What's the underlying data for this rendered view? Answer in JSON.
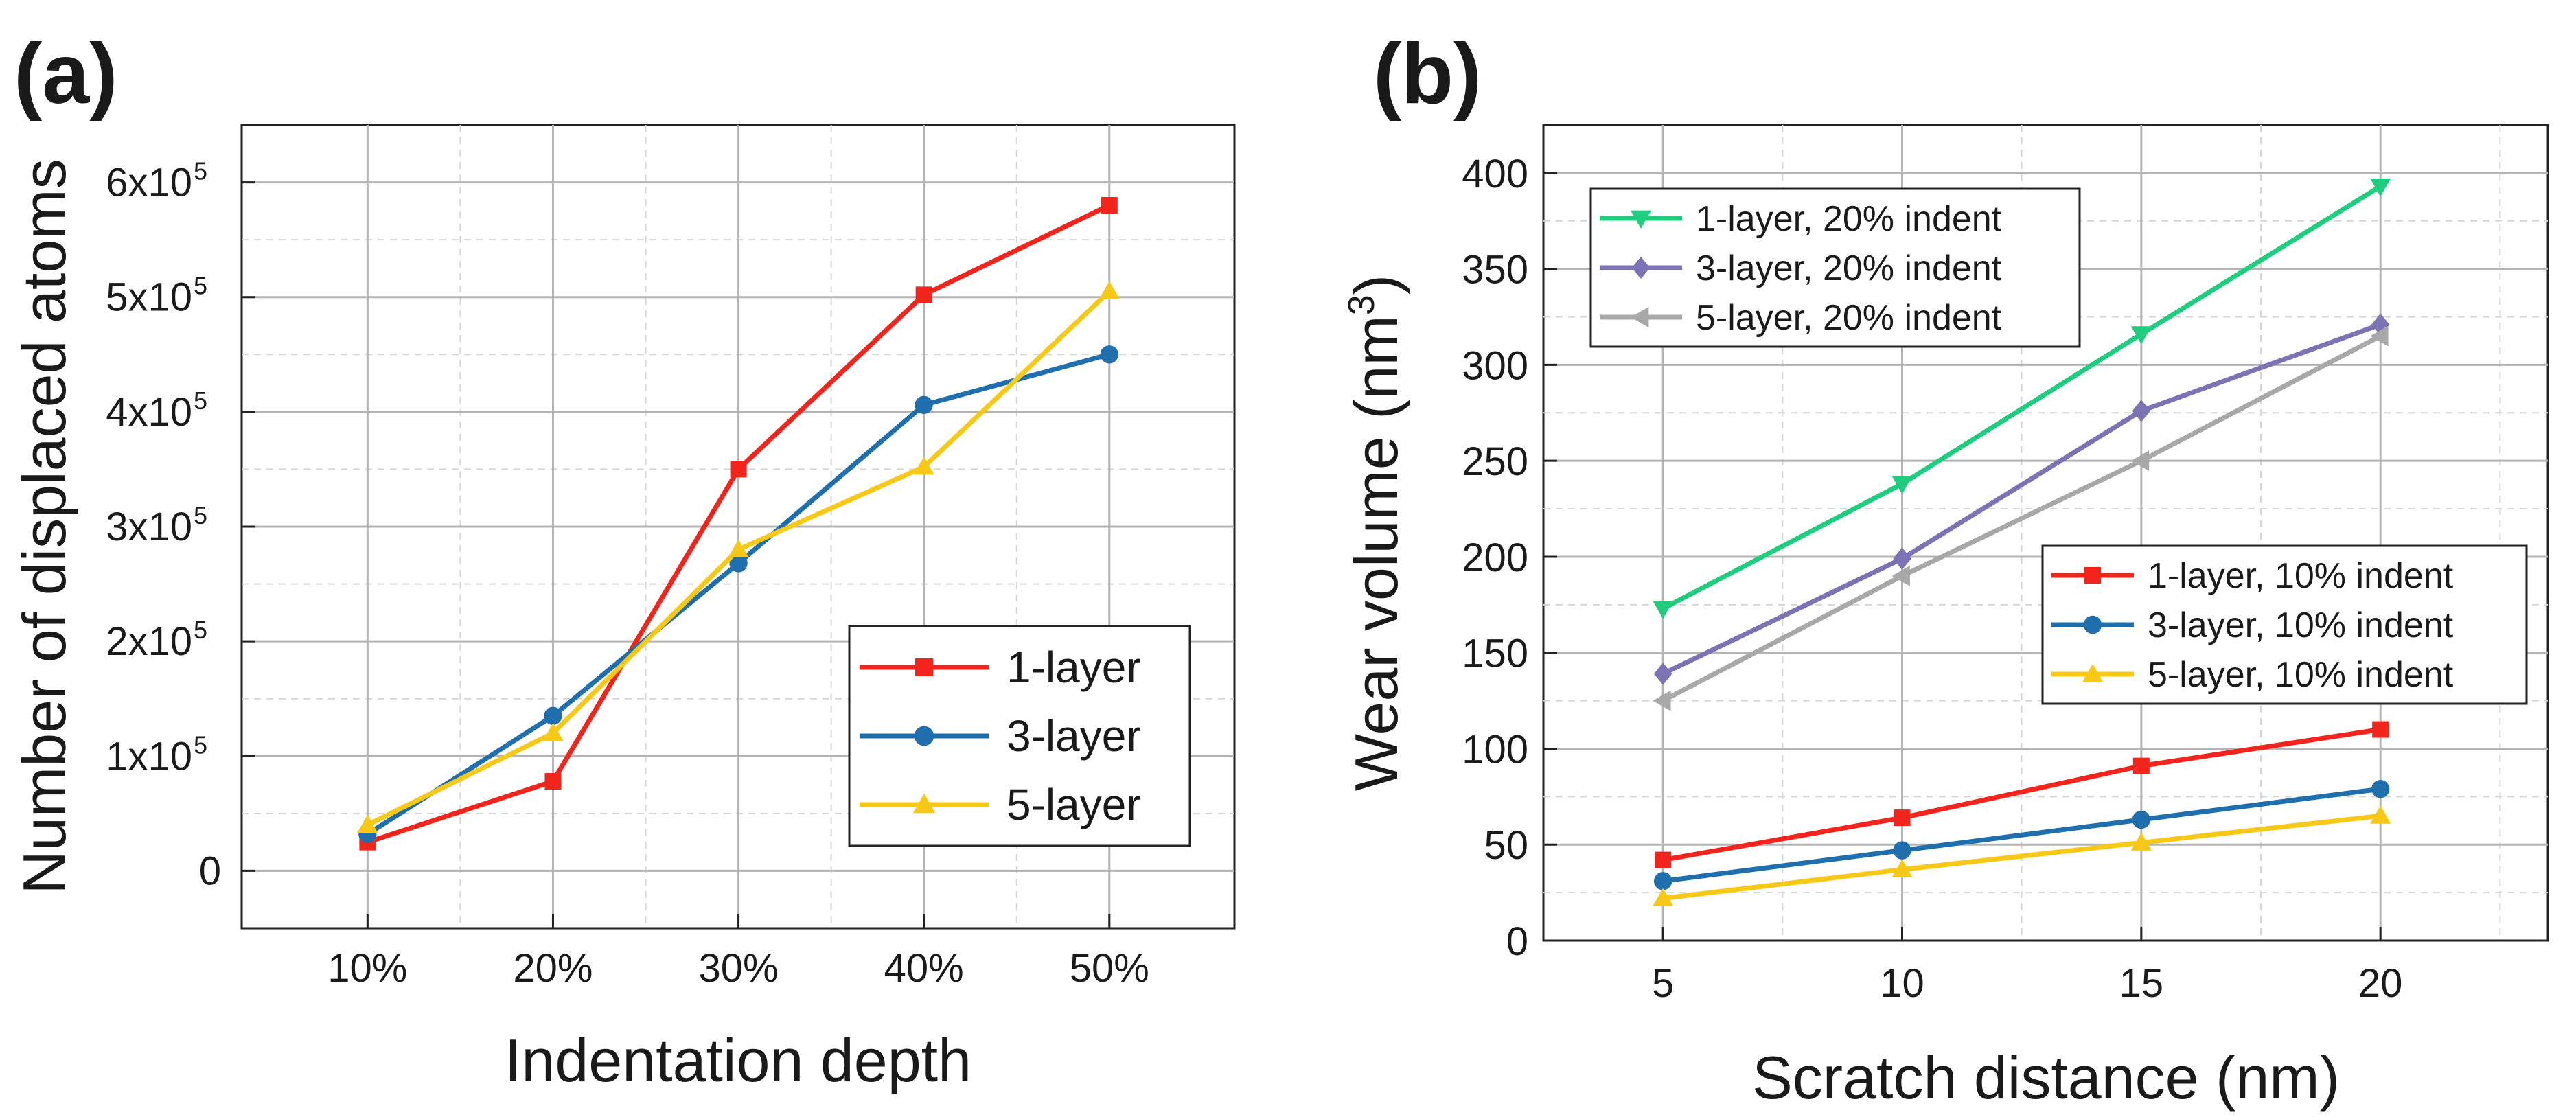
{
  "chart_data": [
    {
      "panel": "(a)",
      "type": "line",
      "categories": [
        "10%",
        "20%",
        "30%",
        "40%",
        "50%"
      ],
      "xlabel": "Indentation depth",
      "ylabel": "Number of displaced atoms",
      "ylim": [
        -50000,
        650000
      ],
      "yticks": [
        {
          "value": 0,
          "label": "0",
          "sup": ""
        },
        {
          "value": 100000,
          "label": "1x10",
          "sup": "5"
        },
        {
          "value": 200000,
          "label": "2x10",
          "sup": "5"
        },
        {
          "value": 300000,
          "label": "3x10",
          "sup": "5"
        },
        {
          "value": 400000,
          "label": "4x10",
          "sup": "5"
        },
        {
          "value": 500000,
          "label": "5x10",
          "sup": "5"
        },
        {
          "value": 600000,
          "label": "6x10",
          "sup": "5"
        }
      ],
      "grid": true,
      "legend_position": "bottom-right",
      "series": [
        {
          "name": "1-layer",
          "color": "#f2241c",
          "marker": "square",
          "values": [
            25000,
            78000,
            350000,
            502000,
            580000
          ]
        },
        {
          "name": "3-layer",
          "color": "#1f6fae",
          "marker": "circle",
          "values": [
            32000,
            135000,
            268000,
            406000,
            450000
          ]
        },
        {
          "name": "5-layer",
          "color": "#f7c815",
          "marker": "triangle-up",
          "values": [
            40000,
            120000,
            280000,
            352000,
            505000
          ]
        }
      ]
    },
    {
      "panel": "(b)",
      "type": "line",
      "x": [
        5,
        10,
        15,
        20
      ],
      "xlim": [
        2.5,
        23.5
      ],
      "xticks": [
        5,
        10,
        15,
        20
      ],
      "xlabel": "Scratch distance (nm)",
      "ylabel": "Wear volume (nm",
      "ylabel_sup": "3",
      "ylabel_end": ")",
      "ylim": [
        0,
        425
      ],
      "yticks": [
        0,
        50,
        100,
        150,
        200,
        250,
        300,
        350,
        400
      ],
      "grid": true,
      "legend_position": "top-left and center-right",
      "series": [
        {
          "name": "1-layer, 20% indent",
          "color": "#1fcd7e",
          "marker": "triangle-down",
          "values": [
            173,
            238,
            316,
            393
          ],
          "legend_group": 1
        },
        {
          "name": "3-layer, 20% indent",
          "color": "#7b73b4",
          "marker": "diamond",
          "values": [
            139,
            199,
            276,
            321
          ],
          "legend_group": 1
        },
        {
          "name": "5-layer, 20% indent",
          "color": "#a8a8a8",
          "marker": "triangle-left",
          "values": [
            125,
            190,
            250,
            315
          ],
          "legend_group": 1
        },
        {
          "name": "1-layer, 10% indent",
          "color": "#f2241c",
          "marker": "square",
          "values": [
            42,
            64,
            91,
            110
          ],
          "legend_group": 2
        },
        {
          "name": "3-layer, 10% indent",
          "color": "#1f6fae",
          "marker": "circle",
          "values": [
            31,
            47,
            63,
            79
          ],
          "legend_group": 2
        },
        {
          "name": "5-layer, 10% indent",
          "color": "#f7c815",
          "marker": "triangle-up",
          "values": [
            22,
            37,
            51,
            65
          ],
          "legend_group": 2
        }
      ]
    }
  ]
}
